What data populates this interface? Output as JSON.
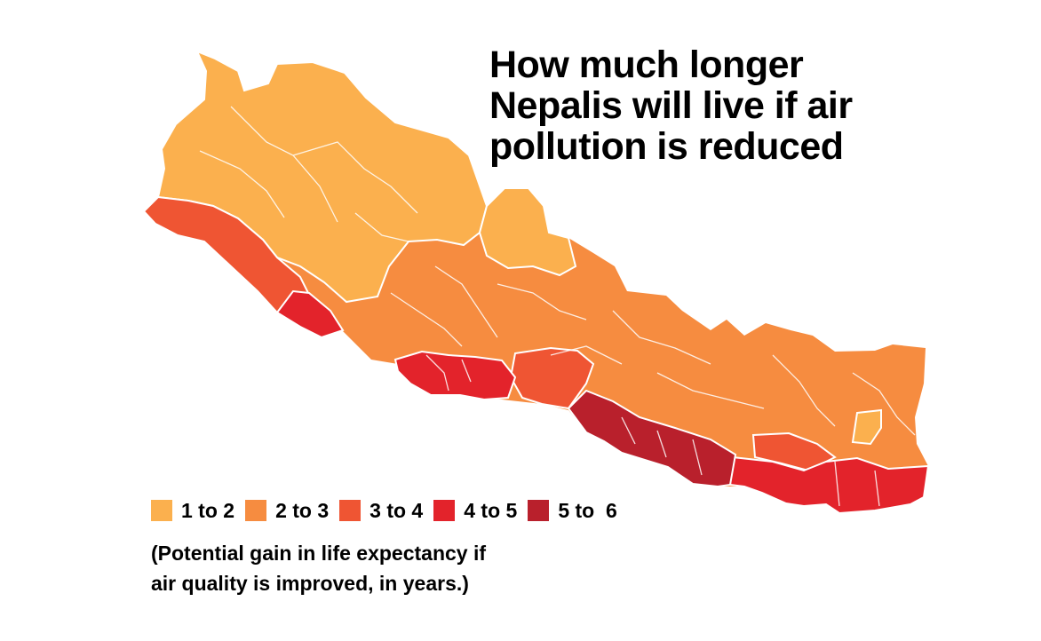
{
  "title": {
    "line1": "How much longer",
    "line2": "Nepalis will live if air",
    "line3": "pollution is reduced"
  },
  "legend": [
    {
      "label": "1 to 2",
      "color": "#FBB04E"
    },
    {
      "label": "2 to 3",
      "color": "#F68C40"
    },
    {
      "label": "3 to 4",
      "color": "#EF5533"
    },
    {
      "label": "4 to 5",
      "color": "#E3232B"
    },
    {
      "label": "5 to  6",
      "color": "#B9202C"
    }
  ],
  "note": {
    "line1": "(Potential gain in life expectancy if",
    "line2": "air quality is improved, in years.)"
  },
  "colors": {
    "border": "#FFFFFF",
    "background": "#FFFFFF",
    "text": "#000000"
  }
}
